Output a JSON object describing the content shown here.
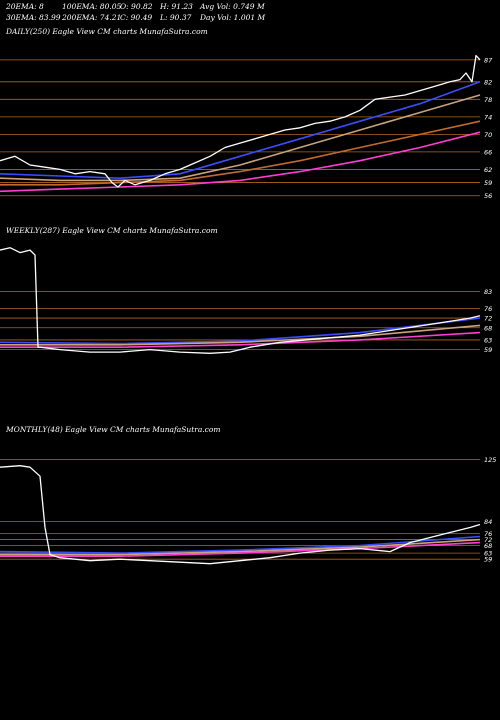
{
  "header": {
    "ema20": "20EMA: 8",
    "ema100": "100EMA: 80.05",
    "o": "O: 90.82",
    "h": "H: 91.23",
    "avgvol": "Avg Vol: 0.749 M",
    "ema30": "30EMA: 83.99",
    "ema200": "200EMA: 74.21",
    "c": "C: 90.49",
    "l": "L: 90.37",
    "dayvol": "Day Vol: 1.001 M"
  },
  "chart_data": [
    {
      "type": "line",
      "title": "DAILY(250) Eagle  View  CM charts MunafaSutra.com",
      "grid": "horizontal",
      "ylim": [
        50,
        92
      ],
      "tick_labels": [
        "87",
        "82",
        "78",
        "74",
        "70",
        "66",
        "62",
        "59",
        "56"
      ],
      "tick_values": [
        87,
        82,
        78,
        74,
        70,
        66,
        62,
        59,
        56
      ],
      "series": [
        {
          "role": "price",
          "color": "#ffffff",
          "x": [
            0,
            15,
            30,
            45,
            60,
            75,
            90,
            105,
            112,
            118,
            125,
            135,
            150,
            165,
            180,
            195,
            210,
            225,
            240,
            255,
            270,
            285,
            300,
            315,
            330,
            345,
            360,
            375,
            390,
            405,
            420,
            435,
            450,
            460,
            466,
            472,
            476,
            480
          ],
          "y": [
            64,
            65,
            63,
            62.5,
            62,
            61,
            61.5,
            61,
            59,
            58,
            59.5,
            58.5,
            59.5,
            61,
            62,
            63.5,
            65,
            67,
            68,
            69,
            70,
            71,
            71.5,
            72.5,
            73,
            74,
            75.5,
            78,
            78.5,
            79,
            80,
            81,
            82,
            82.5,
            84,
            82,
            88,
            87
          ]
        },
        {
          "role": "ema",
          "color": "#3b4cff",
          "x": [
            0,
            60,
            120,
            180,
            240,
            300,
            360,
            420,
            480
          ],
          "y": [
            61,
            60.5,
            60,
            61,
            65,
            69,
            73,
            77,
            82
          ]
        },
        {
          "role": "ema",
          "color": "#c9a37a",
          "x": [
            0,
            60,
            120,
            180,
            240,
            300,
            360,
            420,
            480
          ],
          "y": [
            60,
            59.5,
            59.5,
            60,
            63,
            67,
            71,
            75,
            79
          ]
        },
        {
          "role": "ema",
          "color": "#c06a30",
          "x": [
            0,
            60,
            120,
            180,
            240,
            300,
            360,
            420,
            480
          ],
          "y": [
            58.5,
            58.5,
            59,
            59.5,
            61.5,
            64,
            67,
            70,
            73
          ]
        },
        {
          "role": "ema",
          "color": "#ff3fd0",
          "x": [
            0,
            60,
            120,
            180,
            240,
            300,
            360,
            420,
            480
          ],
          "y": [
            57,
            57.5,
            58,
            58.5,
            59.5,
            61.5,
            64,
            67,
            70.5
          ]
        }
      ]
    },
    {
      "type": "line",
      "title": "WEEKLY(287) Eagle  View  CM charts MunafaSutra.com",
      "grid": "horizontal",
      "ylim": [
        30,
        105
      ],
      "tick_labels": [
        "83",
        "76",
        "72",
        "68",
        "63",
        "59"
      ],
      "tick_values": [
        83,
        76,
        72,
        68,
        63,
        59
      ],
      "series": [
        {
          "role": "price",
          "color": "#ffffff",
          "x": [
            0,
            10,
            20,
            30,
            35,
            38,
            40,
            60,
            90,
            120,
            150,
            180,
            210,
            230,
            250,
            280,
            320,
            360,
            400,
            440,
            470,
            480
          ],
          "y": [
            100,
            101,
            99,
            100,
            98,
            60,
            60,
            59,
            58,
            58,
            59,
            58,
            57.5,
            58,
            60,
            62,
            63.5,
            65,
            67.5,
            70,
            72,
            73
          ]
        },
        {
          "role": "ema",
          "color": "#3b4cff",
          "x": [
            0,
            120,
            240,
            360,
            480
          ],
          "y": [
            62,
            61.5,
            62.5,
            66,
            72
          ]
        },
        {
          "role": "ema",
          "color": "#c9a37a",
          "x": [
            0,
            120,
            240,
            360,
            480
          ],
          "y": [
            61,
            61,
            62,
            64.5,
            69
          ]
        },
        {
          "role": "ema",
          "color": "#ff3fd0",
          "x": [
            0,
            120,
            240,
            360,
            480
          ],
          "y": [
            60,
            60,
            61,
            63,
            66
          ]
        }
      ]
    },
    {
      "type": "line",
      "title": "MONTHLY(48) Eagle  View  CM charts MunafaSutra.com",
      "grid": "horizontal",
      "ylim": [
        20,
        140
      ],
      "tick_labels": [
        "125",
        "84",
        "76",
        "72",
        "68",
        "63",
        "59"
      ],
      "tick_values": [
        125,
        84,
        76,
        72,
        68,
        63,
        59
      ],
      "series": [
        {
          "role": "price",
          "color": "#ffffff",
          "x": [
            0,
            20,
            30,
            40,
            45,
            50,
            60,
            90,
            120,
            150,
            180,
            210,
            240,
            270,
            300,
            330,
            360,
            390,
            410,
            440,
            470,
            480
          ],
          "y": [
            120,
            121,
            120,
            114,
            80,
            62,
            60,
            58,
            59,
            58,
            57,
            56,
            58,
            60,
            63,
            65,
            66,
            64,
            70,
            75,
            80,
            82
          ]
        },
        {
          "role": "ema",
          "color": "#3b4cff",
          "x": [
            0,
            120,
            240,
            360,
            480
          ],
          "y": [
            64,
            63,
            65,
            68,
            74
          ]
        },
        {
          "role": "ema",
          "color": "#c9a37a",
          "x": [
            0,
            120,
            240,
            360,
            480
          ],
          "y": [
            62,
            62,
            64,
            67,
            72
          ]
        },
        {
          "role": "ema",
          "color": "#ff3fd0",
          "x": [
            0,
            120,
            240,
            360,
            480
          ],
          "y": [
            61,
            61,
            63,
            66,
            70
          ]
        }
      ]
    }
  ],
  "colors": {
    "background": "#000000",
    "grid": "#b5651d",
    "price": "#ffffff",
    "ema_fast": "#3b4cff",
    "ema_mid": "#c9a37a",
    "ema_slow": "#ff3fd0"
  }
}
